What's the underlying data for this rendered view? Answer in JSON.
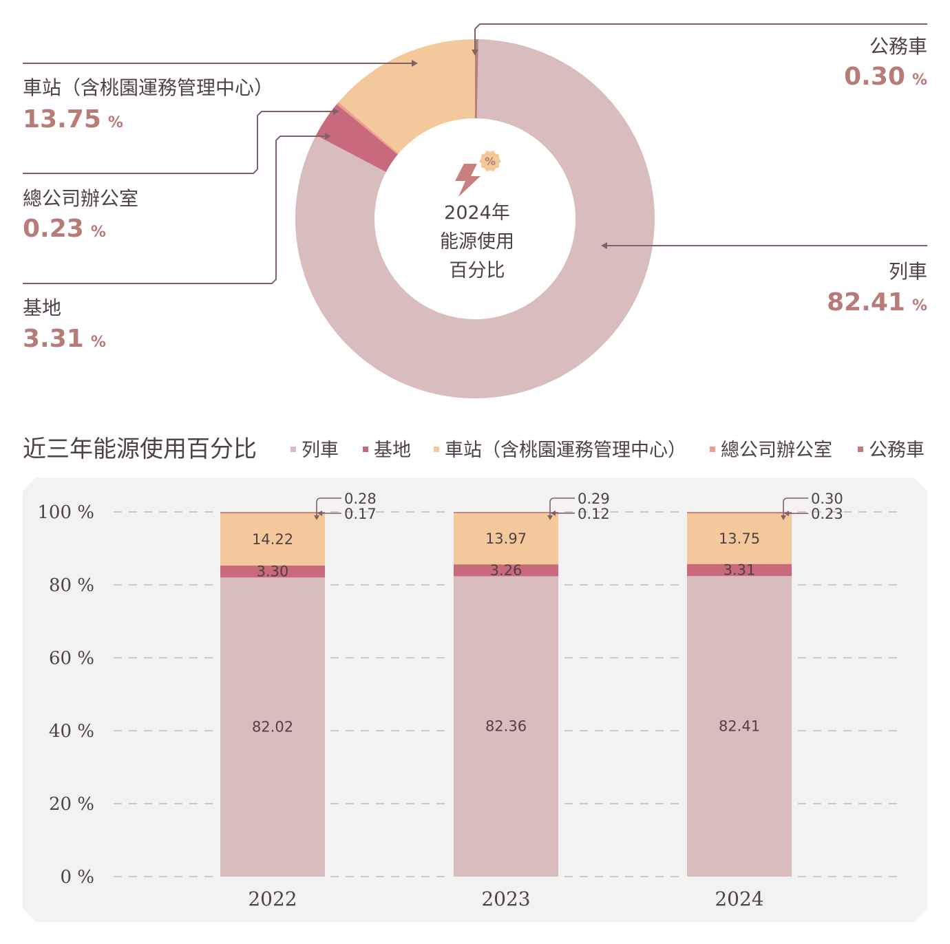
{
  "chart_data": [
    {
      "type": "pie",
      "center_text": [
        "2024年",
        "能源使用",
        "百分比"
      ],
      "slices": [
        {
          "name": "列車",
          "value": 82.41,
          "value_label": "82.41",
          "unit": "%",
          "color": "#d9bcbe"
        },
        {
          "name": "基地",
          "value": 3.31,
          "value_label": "3.31",
          "unit": "%",
          "color": "#c9697c"
        },
        {
          "name": "總公司辦公室",
          "value": 0.23,
          "value_label": "0.23",
          "unit": "%",
          "color": "#ef9e8c"
        },
        {
          "name": "車站（含桃園運務管理中心）",
          "value": 13.75,
          "value_label": "13.75",
          "unit": "%",
          "color": "#f3c99b"
        },
        {
          "name": "公務車",
          "value": 0.3,
          "value_label": "0.30",
          "unit": "%",
          "color": "#b97f7c"
        }
      ]
    },
    {
      "type": "bar",
      "stacked": true,
      "title": "近三年能源使用百分比",
      "legend_position": "top-right",
      "categories": [
        "2022",
        "2023",
        "2024"
      ],
      "yticks": [
        "0 %",
        "20 %",
        "40 %",
        "60 %",
        "80 %",
        "100 %"
      ],
      "ylim": [
        0,
        100
      ],
      "grid": true,
      "series": [
        {
          "name": "列車",
          "color": "#d9bcbe",
          "values": [
            82.02,
            82.36,
            82.41
          ],
          "labels": [
            "82.02",
            "82.36",
            "82.41"
          ]
        },
        {
          "name": "基地",
          "color": "#c9697c",
          "values": [
            3.3,
            3.26,
            3.31
          ],
          "labels": [
            "3.30",
            "3.26",
            "3.31"
          ]
        },
        {
          "name": "車站（含桃園運務管理中心）",
          "color": "#f3c99b",
          "values": [
            14.22,
            13.97,
            13.75
          ],
          "labels": [
            "14.22",
            "13.97",
            "13.75"
          ]
        },
        {
          "name": "總公司辦公室",
          "color": "#ef9e8c",
          "values": [
            0.17,
            0.12,
            0.23
          ],
          "labels": [
            "0.17",
            "0.12",
            "0.23"
          ]
        },
        {
          "name": "公務車",
          "color": "#b97f7c",
          "values": [
            0.28,
            0.29,
            0.3
          ],
          "labels": [
            "0.28",
            "0.29",
            "0.30"
          ]
        }
      ]
    }
  ]
}
